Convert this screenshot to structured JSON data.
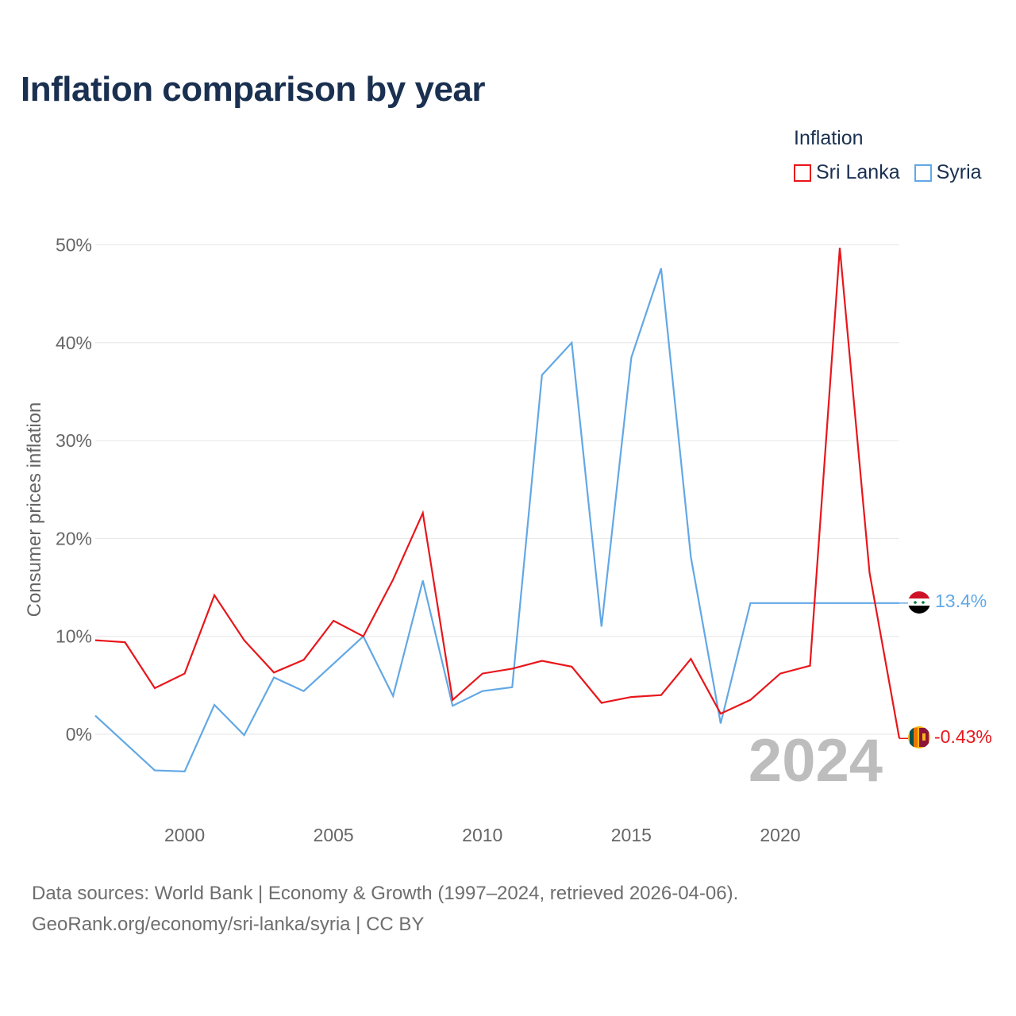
{
  "title": "Inflation comparison by year",
  "legend": {
    "title": "Inflation",
    "items": [
      {
        "label": "Sri Lanka",
        "color": "#e8161b"
      },
      {
        "label": "Syria",
        "color": "#62a8e5"
      }
    ]
  },
  "footer": {
    "line1": "Data sources: World Bank | Economy & Growth (1997–2024, retrieved 2026-04-06).",
    "line2": "GeoRank.org/economy/sri-lanka/syria | CC BY"
  },
  "chart_data": {
    "type": "line",
    "title": "Inflation comparison by year",
    "xlabel": "",
    "ylabel": "Consumer prices inflation",
    "xlim": [
      1997,
      2024
    ],
    "ylim": [
      -7,
      50
    ],
    "yticks": [
      0,
      10,
      20,
      30,
      40,
      50
    ],
    "ytick_labels": [
      "0%",
      "10%",
      "20%",
      "30%",
      "40%",
      "50%"
    ],
    "xticks": [
      2000,
      2005,
      2010,
      2015,
      2020
    ],
    "xtick_labels": [
      "2000",
      "2005",
      "2010",
      "2015",
      "2020"
    ],
    "grid": true,
    "legend_position": "top-right",
    "year_label": "2024",
    "x": [
      1997,
      1998,
      1999,
      2000,
      2001,
      2002,
      2003,
      2004,
      2005,
      2006,
      2007,
      2008,
      2009,
      2010,
      2011,
      2012,
      2013,
      2014,
      2015,
      2016,
      2017,
      2018,
      2019,
      2020,
      2021,
      2022,
      2023,
      2024
    ],
    "series": [
      {
        "name": "Sri Lanka",
        "color": "#e8161b",
        "values": [
          9.6,
          9.4,
          4.7,
          6.2,
          14.2,
          9.6,
          6.3,
          7.6,
          11.6,
          10.0,
          15.8,
          22.6,
          3.5,
          6.2,
          6.7,
          7.5,
          6.9,
          3.2,
          3.8,
          4.0,
          7.7,
          2.1,
          3.5,
          6.2,
          7.0,
          49.7,
          16.5,
          -0.43
        ],
        "end_label": "-0.43%",
        "flag_icon": "sri-lanka-flag-icon"
      },
      {
        "name": "Syria",
        "color": "#62a8e5",
        "values": [
          1.9,
          -0.9,
          -3.7,
          -3.8,
          3.0,
          -0.1,
          5.8,
          4.4,
          7.2,
          10.0,
          3.9,
          15.7,
          2.9,
          4.4,
          4.8,
          36.7,
          40.0,
          11.0,
          38.5,
          47.6,
          18.1,
          1.1,
          13.4,
          13.4,
          13.4,
          13.4,
          13.4,
          13.4
        ],
        "end_label": "13.4%",
        "flag_icon": "syria-flag-icon"
      }
    ]
  }
}
